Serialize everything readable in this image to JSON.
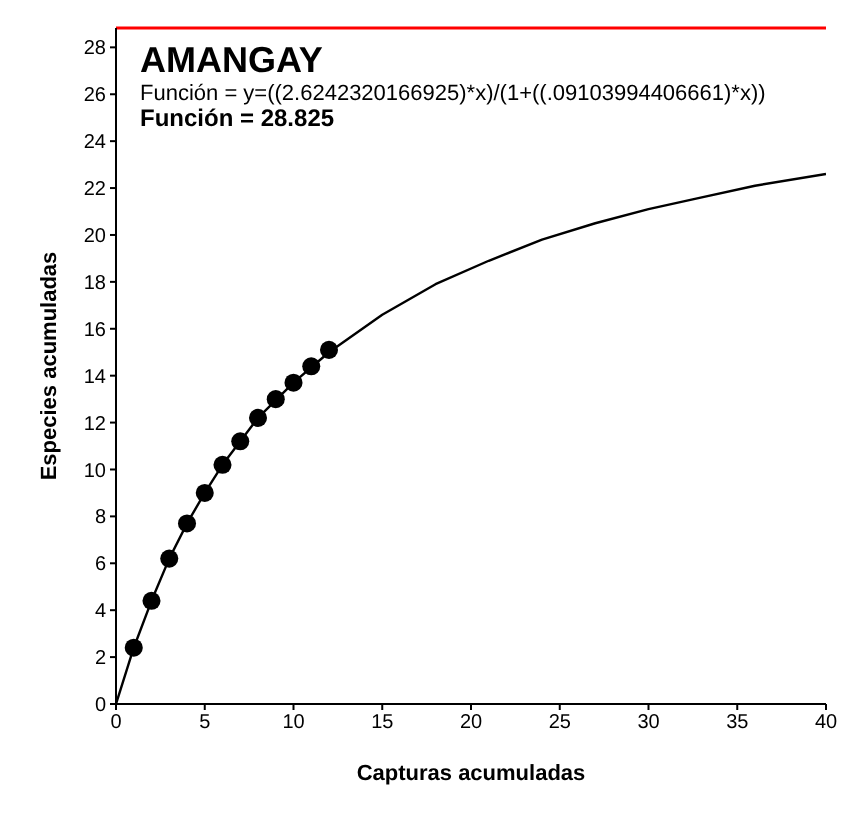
{
  "chart_data": {
    "type": "scatter",
    "xlabel": "Capturas acumuladas",
    "ylabel": "Especies acumuladas",
    "annotations": [
      "AMANGAY",
      "Función = y=((2.6242320166925)*x)/(1+((.09103994406661)*x))",
      "Función = 28.825"
    ],
    "series": [
      {
        "type": "line",
        "color": "#000000",
        "marker": "none",
        "x": [
          0,
          1,
          2,
          3,
          4,
          5,
          6,
          8,
          10,
          12,
          15,
          18,
          21,
          24,
          27,
          30,
          33,
          36,
          40
        ],
        "values": [
          0,
          2.4,
          4.4,
          6.2,
          7.7,
          9.0,
          10.2,
          12.2,
          13.7,
          15.0,
          16.6,
          17.9,
          18.9,
          19.8,
          20.5,
          21.1,
          21.6,
          22.1,
          22.6
        ]
      },
      {
        "color": "#000000",
        "marker": "circle",
        "x": [
          1,
          2,
          3,
          4,
          5,
          6,
          7,
          8,
          9,
          10,
          11,
          12
        ],
        "values": [
          2.4,
          4.4,
          6.2,
          7.7,
          9.0,
          10.2,
          11.2,
          12.2,
          13.0,
          13.7,
          14.4,
          15.1
        ]
      }
    ],
    "xlim": [
      0,
      40
    ],
    "xticks": [
      0,
      5,
      10,
      15,
      20,
      25,
      30,
      35,
      40
    ],
    "ylim": [
      0,
      28.825
    ],
    "yticks": [
      0,
      2,
      4,
      6,
      8,
      10,
      12,
      14,
      16,
      18,
      20,
      22,
      24,
      26,
      28
    ],
    "ref_lines": [
      {
        "axis": "y",
        "value": 28.825,
        "color": "#ff0000"
      }
    ],
    "grid": false,
    "legend": false
  }
}
